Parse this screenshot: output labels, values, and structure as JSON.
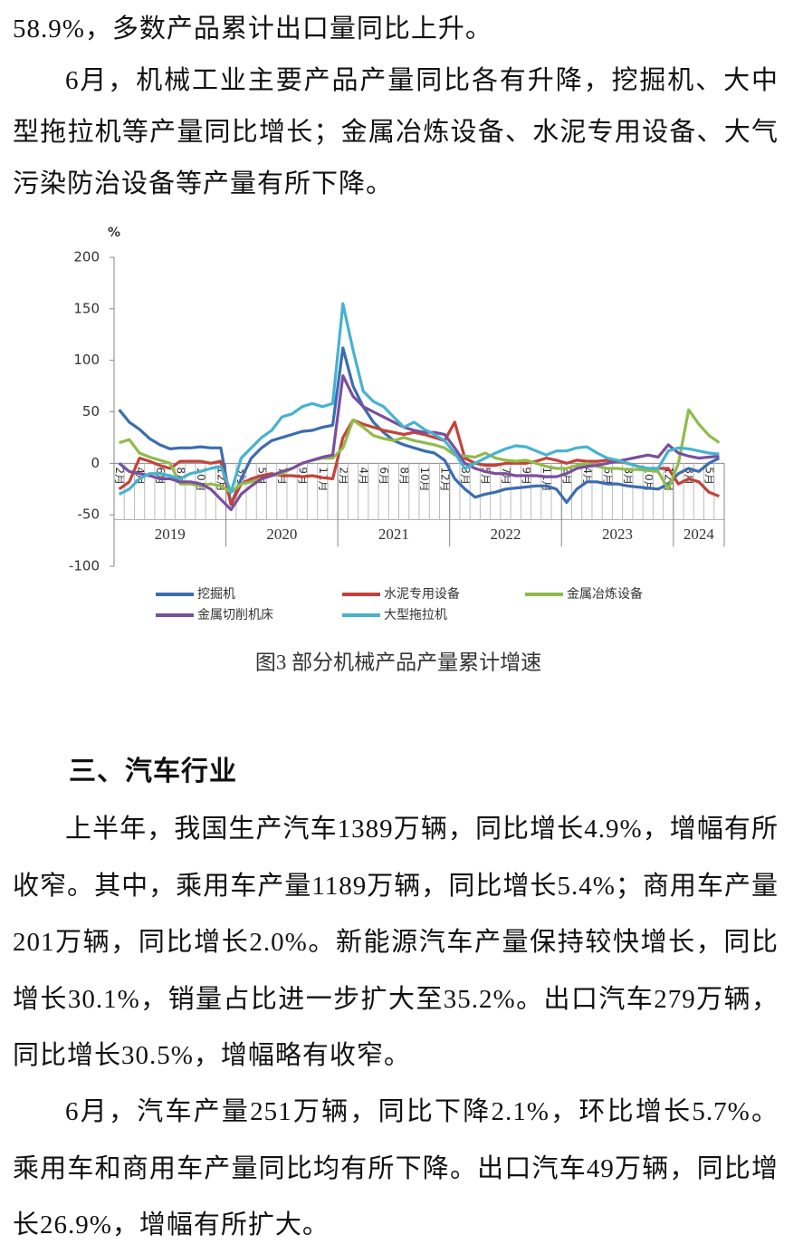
{
  "document": {
    "top_paragraphs": [
      "58.9%，多数产品累计出口量同比上升。",
      "6月，机械工业主要产品产量同比各有升降，挖掘机、大中型拖拉机等产量同比增长；金属冶炼设备、水泥专用设备、大气污染防治设备等产量有所下降。"
    ],
    "caption": "图3 部分机械产品产量累计增速",
    "section_heading": "三、汽车行业",
    "section_paragraphs": [
      "上半年，我国生产汽车1389万辆，同比增长4.9%，增幅有所收窄。其中，乘用车产量1189万辆，同比增长5.4%；商用车产量201万辆，同比增长2.0%。新能源汽车产量保持较快增长，同比增长30.1%，销量占比进一步扩大至35.2%。出口汽车279万辆，同比增长30.5%，增幅略有收窄。",
      "6月，汽车产量251万辆，同比下降2.1%，环比增长5.7%。乘用车和商用车产量同比均有所下降。出口汽车49万辆，同比增长26.9%，增幅有所扩大。"
    ]
  },
  "chart_data": {
    "type": "line",
    "y_label": "%",
    "ylim": [
      -100,
      200
    ],
    "yticks": [
      -100,
      -50,
      0,
      50,
      100,
      150,
      200
    ],
    "legend": "bottom",
    "groups": [
      {
        "label": "2019",
        "categories": [
          "2月",
          null,
          "4月",
          null,
          "6月",
          null,
          "8月",
          null,
          "10月",
          null,
          "12月"
        ]
      },
      {
        "label": "2020",
        "categories": [
          null,
          "3月",
          null,
          "5月",
          null,
          "7月",
          null,
          "9月",
          null,
          "11月",
          null
        ]
      },
      {
        "label": "2021",
        "categories": [
          "2月",
          null,
          "4月",
          null,
          "6月",
          null,
          "8月",
          null,
          "10月",
          null,
          "12月"
        ]
      },
      {
        "label": "2022",
        "categories": [
          null,
          "3月",
          null,
          "5月",
          null,
          "7月",
          null,
          "9月",
          null,
          "11月",
          null
        ]
      },
      {
        "label": "2023",
        "categories": [
          "2月",
          null,
          "4月",
          null,
          "6月",
          null,
          "8月",
          null,
          "10月",
          null,
          "12月"
        ]
      },
      {
        "label": "2024",
        "categories": [
          null,
          "3月",
          null,
          "5月",
          null
        ]
      }
    ],
    "series": [
      {
        "name": "挖掘机",
        "color": "#3a6db0",
        "values": [
          52,
          40,
          33,
          24,
          18,
          14,
          15,
          15,
          16,
          15,
          15,
          -40,
          -15,
          5,
          15,
          22,
          25,
          28,
          31,
          32,
          35,
          37,
          112,
          75,
          55,
          40,
          30,
          22,
          18,
          15,
          12,
          10,
          3,
          -15,
          -25,
          -33,
          -30,
          -28,
          -25,
          -24,
          -23,
          -22,
          -22,
          -25,
          -38,
          -25,
          -18,
          -18,
          -20,
          -20,
          -22,
          -23,
          -24,
          -25,
          -20,
          -10,
          -5,
          -8,
          0,
          5
        ]
      },
      {
        "name": "水泥专用设备",
        "color": "#c4423a",
        "values": [
          -25,
          -18,
          5,
          2,
          -2,
          -5,
          2,
          2,
          2,
          0,
          2,
          -40,
          -20,
          -15,
          -12,
          -10,
          -12,
          -12,
          -13,
          -12,
          -14,
          -15,
          25,
          42,
          38,
          35,
          32,
          30,
          28,
          30,
          28,
          25,
          22,
          40,
          5,
          0,
          -2,
          -2,
          0,
          0,
          0,
          2,
          5,
          3,
          0,
          3,
          2,
          2,
          3,
          2,
          0,
          -3,
          -5,
          -5,
          -5,
          -20,
          -15,
          -18,
          -28,
          -32
        ]
      },
      {
        "name": "金属冶炼设备",
        "color": "#8fbc4a",
        "values": [
          20,
          23,
          10,
          6,
          3,
          0,
          -20,
          -20,
          -22,
          -20,
          -22,
          -28,
          -20,
          -18,
          -15,
          -12,
          -10,
          -5,
          0,
          3,
          5,
          5,
          15,
          42,
          35,
          27,
          24,
          22,
          25,
          22,
          20,
          18,
          15,
          8,
          7,
          6,
          10,
          5,
          3,
          2,
          3,
          0,
          -3,
          -5,
          -5,
          -2,
          0,
          -3,
          -5,
          -5,
          -6,
          -6,
          -7,
          -8,
          -25,
          0,
          52,
          38,
          27,
          20
        ]
      },
      {
        "name": "金属切削机床",
        "color": "#7a4f9e",
        "values": [
          0,
          -8,
          -10,
          -12,
          -15,
          -15,
          -18,
          -18,
          -20,
          -25,
          -35,
          -45,
          -30,
          -22,
          -15,
          -12,
          -8,
          -5,
          0,
          3,
          6,
          8,
          85,
          65,
          55,
          50,
          45,
          40,
          35,
          32,
          30,
          30,
          28,
          15,
          0,
          -5,
          -8,
          -10,
          -10,
          -12,
          -12,
          -12,
          -13,
          -13,
          -10,
          -5,
          -3,
          -2,
          0,
          2,
          4,
          6,
          8,
          6,
          18,
          10,
          7,
          5,
          6,
          7
        ]
      },
      {
        "name": "大型拖拉机",
        "color": "#45b3d0",
        "values": [
          -30,
          -25,
          -15,
          -10,
          -10,
          -12,
          -15,
          -10,
          -8,
          -5,
          -3,
          -28,
          5,
          15,
          25,
          32,
          45,
          48,
          55,
          58,
          55,
          58,
          155,
          110,
          70,
          60,
          55,
          45,
          35,
          40,
          33,
          28,
          22,
          10,
          -5,
          0,
          5,
          10,
          14,
          17,
          16,
          12,
          8,
          12,
          12,
          15,
          16,
          10,
          5,
          3,
          0,
          -3,
          -5,
          -5,
          12,
          15,
          14,
          12,
          10,
          9
        ]
      }
    ]
  }
}
